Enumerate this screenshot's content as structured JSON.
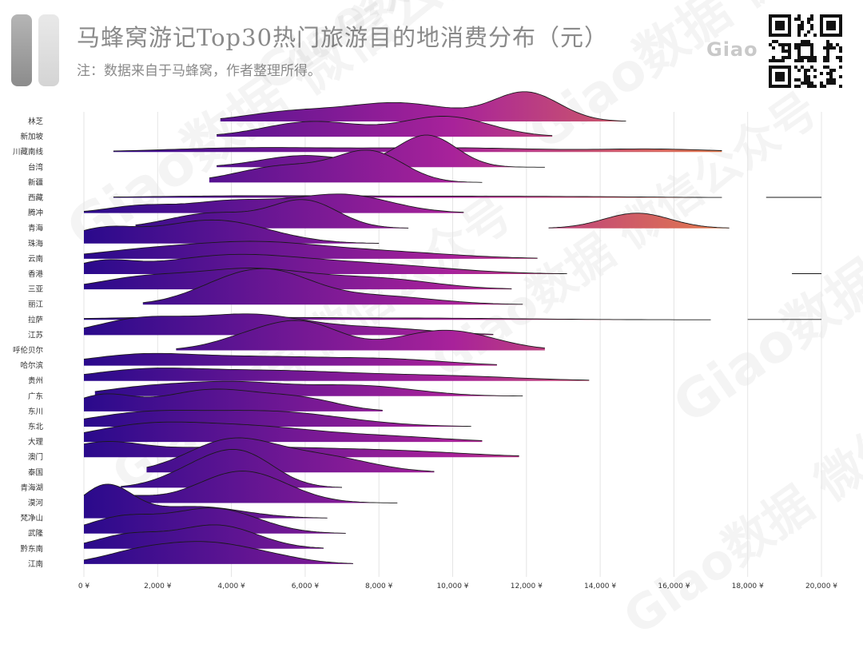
{
  "header": {
    "title": "马蜂窝游记Top30热门旅游目的地消费分布（元）",
    "note": "注：数据来自于马蜂窝，作者整理所得。",
    "brand": "Giao"
  },
  "watermark": {
    "text": "Giao数据 微信公众号"
  },
  "colors": {
    "low": "#2a0a8c",
    "mid": "#a8229a",
    "high": "#f89a30",
    "grid": "#e4e4e4",
    "axis_text": "#333333"
  },
  "chart_data": {
    "type": "ridgeline",
    "title": "马蜂窝游记Top30热门旅游目的地消费分布（元）",
    "subtitle": "注：数据来自于马蜂窝，作者整理所得。",
    "xlabel": "",
    "ylabel": "",
    "xlim": [
      0,
      20000
    ],
    "x_ticks": [
      0,
      2000,
      4000,
      6000,
      8000,
      10000,
      12000,
      14000,
      16000,
      18000,
      20000
    ],
    "x_tick_labels": [
      "0 ¥",
      "2,000 ¥",
      "4,000 ¥",
      "6,000 ¥",
      "8,000 ¥",
      "10,000 ¥",
      "12,000 ¥",
      "14,000 ¥",
      "16,000 ¥",
      "18,000 ¥",
      "20,000 ¥"
    ],
    "grid": true,
    "color_scale": "value-gradient purple-orange",
    "series": [
      {
        "name": "林芝",
        "range": [
          3700,
          14700
        ],
        "peaks": [
          {
            "x": 5500,
            "w": 1200,
            "h": 0.25
          },
          {
            "x": 8500,
            "w": 1500,
            "h": 0.55
          },
          {
            "x": 12000,
            "w": 900,
            "h": 0.85
          }
        ]
      },
      {
        "name": "新加坡",
        "range": [
          3600,
          12700
        ],
        "peaks": [
          {
            "x": 6200,
            "w": 1300,
            "h": 0.45
          },
          {
            "x": 9800,
            "w": 1200,
            "h": 0.6
          }
        ]
      },
      {
        "name": "川藏南线",
        "range": [
          800,
          17300
        ],
        "peaks": [
          {
            "x": 4500,
            "w": 2200,
            "h": 0.12
          },
          {
            "x": 10000,
            "w": 2500,
            "h": 0.12
          },
          {
            "x": 15500,
            "w": 1500,
            "h": 0.08
          }
        ]
      },
      {
        "name": "台湾",
        "range": [
          3600,
          12500
        ],
        "peaks": [
          {
            "x": 6000,
            "w": 1200,
            "h": 0.35
          },
          {
            "x": 9300,
            "w": 800,
            "h": 0.95
          }
        ]
      },
      {
        "name": "新疆",
        "range": [
          3400,
          10800
        ],
        "peaks": [
          {
            "x": 5500,
            "w": 1300,
            "h": 0.5
          },
          {
            "x": 7800,
            "w": 900,
            "h": 0.85
          }
        ]
      },
      {
        "name": "西藏",
        "range": [
          800,
          17300
        ],
        "peaks": [
          {
            "x": 5000,
            "w": 3000,
            "h": 0.06
          },
          {
            "x": 12000,
            "w": 3000,
            "h": 0.04
          }
        ],
        "tail": [
          18500,
          20000
        ]
      },
      {
        "name": "腾冲",
        "range": [
          0,
          10300
        ],
        "peaks": [
          {
            "x": 1500,
            "w": 900,
            "h": 0.2
          },
          {
            "x": 4000,
            "w": 1200,
            "h": 0.35
          },
          {
            "x": 7000,
            "w": 1300,
            "h": 0.55
          }
        ]
      },
      {
        "name": "青海",
        "range": [
          1400,
          8800
        ],
        "peaks": [
          {
            "x": 3500,
            "w": 1200,
            "h": 0.45
          },
          {
            "x": 6000,
            "w": 900,
            "h": 0.8
          }
        ],
        "extra": {
          "range": [
            12600,
            17500
          ],
          "peaks": [
            {
              "x": 15000,
              "w": 900,
              "h": 0.45
            }
          ]
        }
      },
      {
        "name": "珠海",
        "range": [
          0,
          8000
        ],
        "peaks": [
          {
            "x": 500,
            "w": 900,
            "h": 0.4
          },
          {
            "x": 3500,
            "w": 1500,
            "h": 0.7
          }
        ]
      },
      {
        "name": "云南",
        "range": [
          0,
          12300
        ],
        "peaks": [
          {
            "x": 1500,
            "w": 1500,
            "h": 0.2
          },
          {
            "x": 4500,
            "w": 1800,
            "h": 0.45
          },
          {
            "x": 8000,
            "w": 2000,
            "h": 0.2
          }
        ]
      },
      {
        "name": "香港",
        "range": [
          0,
          13100
        ],
        "peaks": [
          {
            "x": 500,
            "w": 800,
            "h": 0.3
          },
          {
            "x": 4000,
            "w": 2000,
            "h": 0.55
          },
          {
            "x": 8000,
            "w": 2000,
            "h": 0.25
          }
        ],
        "tail": [
          19200,
          20000
        ]
      },
      {
        "name": "三亚",
        "range": [
          0,
          11600
        ],
        "peaks": [
          {
            "x": 1500,
            "w": 1200,
            "h": 0.3
          },
          {
            "x": 4500,
            "w": 1600,
            "h": 0.6
          },
          {
            "x": 8000,
            "w": 1500,
            "h": 0.3
          }
        ]
      },
      {
        "name": "丽江",
        "range": [
          1600,
          11900
        ],
        "peaks": [
          {
            "x": 3500,
            "w": 1000,
            "h": 0.25
          },
          {
            "x": 5000,
            "w": 1200,
            "h": 0.95
          },
          {
            "x": 8000,
            "w": 1500,
            "h": 0.25
          }
        ]
      },
      {
        "name": "拉萨",
        "range": [
          0,
          17000
        ],
        "peaks": [
          {
            "x": 3000,
            "w": 2500,
            "h": 0.08
          },
          {
            "x": 9000,
            "w": 3000,
            "h": 0.05
          }
        ],
        "tail": [
          18000,
          20000
        ]
      },
      {
        "name": "江苏",
        "range": [
          0,
          11100
        ],
        "peaks": [
          {
            "x": 1500,
            "w": 1200,
            "h": 0.45
          },
          {
            "x": 4500,
            "w": 1500,
            "h": 0.6
          },
          {
            "x": 8000,
            "w": 1500,
            "h": 0.2
          }
        ]
      },
      {
        "name": "呼伦贝尔",
        "range": [
          2500,
          12500
        ],
        "peaks": [
          {
            "x": 4500,
            "w": 1000,
            "h": 0.35
          },
          {
            "x": 6000,
            "w": 1000,
            "h": 0.75
          },
          {
            "x": 9800,
            "w": 1300,
            "h": 0.6
          }
        ]
      },
      {
        "name": "哈尔滨",
        "range": [
          0,
          11200
        ],
        "peaks": [
          {
            "x": 1500,
            "w": 1500,
            "h": 0.3
          },
          {
            "x": 5000,
            "w": 2000,
            "h": 0.25
          },
          {
            "x": 8500,
            "w": 1500,
            "h": 0.15
          }
        ]
      },
      {
        "name": "贵州",
        "range": [
          0,
          13700
        ],
        "peaks": [
          {
            "x": 1500,
            "w": 1500,
            "h": 0.25
          },
          {
            "x": 5000,
            "w": 2500,
            "h": 0.3
          },
          {
            "x": 10000,
            "w": 2000,
            "h": 0.12
          }
        ]
      },
      {
        "name": "广东",
        "range": [
          300,
          11900
        ],
        "peaks": [
          {
            "x": 1500,
            "w": 1200,
            "h": 0.2
          },
          {
            "x": 4000,
            "w": 1500,
            "h": 0.4
          },
          {
            "x": 7500,
            "w": 1500,
            "h": 0.3
          }
        ]
      },
      {
        "name": "东川",
        "range": [
          0,
          8100
        ],
        "peaks": [
          {
            "x": 500,
            "w": 800,
            "h": 0.45
          },
          {
            "x": 3500,
            "w": 1400,
            "h": 0.65
          },
          {
            "x": 6000,
            "w": 1000,
            "h": 0.3
          }
        ]
      },
      {
        "name": "东北",
        "range": [
          0,
          10500
        ],
        "peaks": [
          {
            "x": 1500,
            "w": 1500,
            "h": 0.35
          },
          {
            "x": 5000,
            "w": 2000,
            "h": 0.45
          }
        ]
      },
      {
        "name": "大理",
        "range": [
          0,
          10800
        ],
        "peaks": [
          {
            "x": 1500,
            "w": 1500,
            "h": 0.4
          },
          {
            "x": 4500,
            "w": 2000,
            "h": 0.45
          },
          {
            "x": 8500,
            "w": 1500,
            "h": 0.12
          }
        ]
      },
      {
        "name": "澳门",
        "range": [
          0,
          11800
        ],
        "peaks": [
          {
            "x": 500,
            "w": 1000,
            "h": 0.35
          },
          {
            "x": 4000,
            "w": 2500,
            "h": 0.3
          },
          {
            "x": 8500,
            "w": 2000,
            "h": 0.15
          }
        ]
      },
      {
        "name": "泰国",
        "range": [
          1700,
          9500
        ],
        "peaks": [
          {
            "x": 4000,
            "w": 1200,
            "h": 0.95
          },
          {
            "x": 6500,
            "w": 1300,
            "h": 0.45
          }
        ]
      },
      {
        "name": "青海湖",
        "range": [
          1000,
          7000
        ],
        "peaks": [
          {
            "x": 3000,
            "w": 900,
            "h": 0.45
          },
          {
            "x": 4300,
            "w": 900,
            "h": 0.95
          }
        ]
      },
      {
        "name": "漠河",
        "range": [
          100,
          8500
        ],
        "peaks": [
          {
            "x": 1000,
            "w": 800,
            "h": 0.2
          },
          {
            "x": 4300,
            "w": 1200,
            "h": 0.95
          }
        ]
      },
      {
        "name": "梵净山",
        "range": [
          0,
          6600
        ],
        "peaks": [
          {
            "x": 600,
            "w": 700,
            "h": 0.95
          },
          {
            "x": 3000,
            "w": 1300,
            "h": 0.35
          }
        ]
      },
      {
        "name": "武隆",
        "range": [
          0,
          7100
        ],
        "peaks": [
          {
            "x": 1000,
            "w": 900,
            "h": 0.45
          },
          {
            "x": 3500,
            "w": 1200,
            "h": 0.75
          }
        ]
      },
      {
        "name": "黔东南",
        "range": [
          0,
          6500
        ],
        "peaks": [
          {
            "x": 1200,
            "w": 900,
            "h": 0.4
          },
          {
            "x": 3600,
            "w": 1100,
            "h": 0.7
          }
        ]
      },
      {
        "name": "江南",
        "range": [
          0,
          7300
        ],
        "peaks": [
          {
            "x": 1500,
            "w": 1000,
            "h": 0.35
          },
          {
            "x": 3300,
            "w": 1100,
            "h": 0.55
          },
          {
            "x": 5000,
            "w": 1000,
            "h": 0.2
          }
        ]
      }
    ]
  }
}
